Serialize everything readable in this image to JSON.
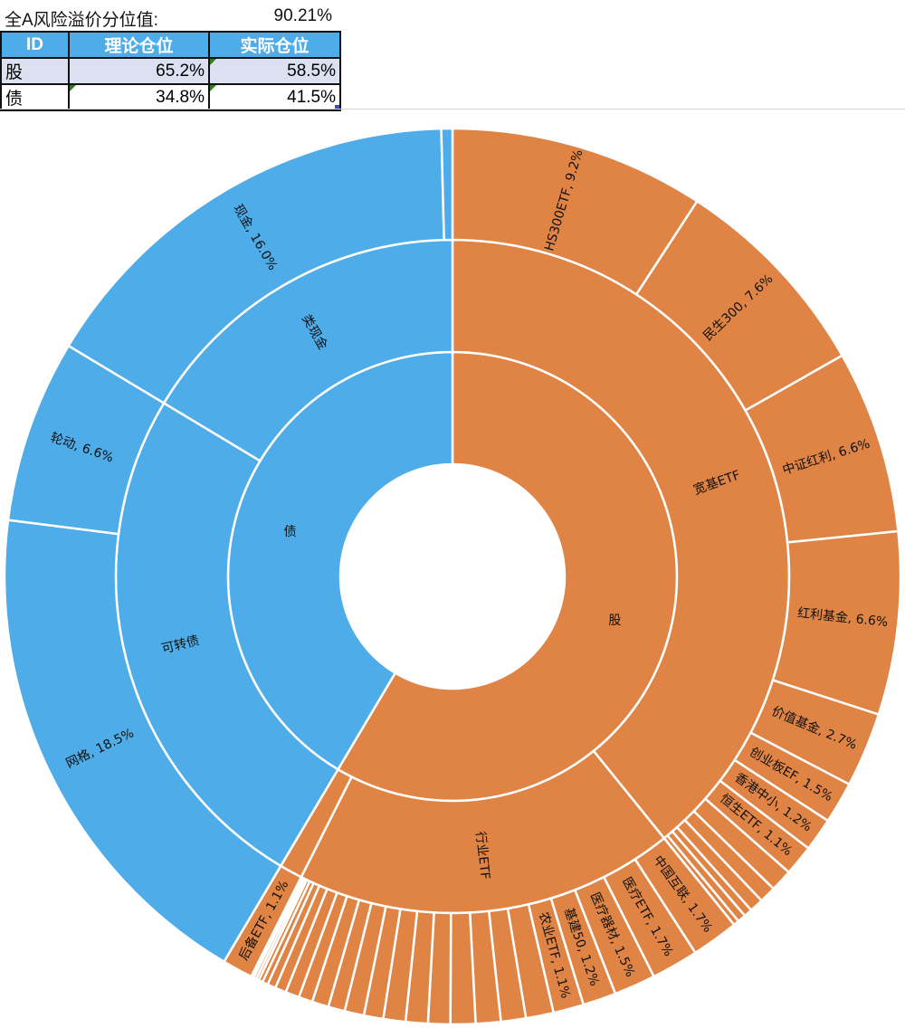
{
  "header": {
    "label": "全A风险溢价分位值:",
    "value": "90.21%"
  },
  "table": {
    "columns": [
      "ID",
      "理论仓位",
      "实际仓位"
    ],
    "rows": [
      {
        "id": "股",
        "theoretical": "65.2%",
        "actual": "58.5%"
      },
      {
        "id": "债",
        "theoretical": "34.8%",
        "actual": "41.5%"
      }
    ]
  },
  "colors": {
    "股": "#DF8444",
    "债": "#4EACE8"
  },
  "chart_data": {
    "type": "sunburst",
    "unit": "%",
    "children": [
      {
        "name": "股",
        "children": [
          {
            "name": "宽基ETF",
            "children": [
              {
                "label": "HS300ETF, 9.2%",
                "value": 9.2
              },
              {
                "label": "民生300, 7.6%",
                "value": 7.6
              },
              {
                "label": "中证红利, 6.6%",
                "value": 6.6
              },
              {
                "label": "红利基金, 6.6%",
                "value": 6.6
              },
              {
                "label": "价值基金, 2.7%",
                "value": 2.7
              },
              {
                "label": "创业板EF, 1.5%",
                "value": 1.5
              },
              {
                "label": "香港中小, 1.2%",
                "value": 1.2
              },
              {
                "label": "恒生ETF, 1.1%",
                "value": 1.1
              },
              {
                "value": 0.8
              },
              {
                "value": 0.6
              },
              {
                "value": 0.5
              },
              {
                "value": 0.3
              },
              {
                "value": 0.3
              },
              {
                "value": 0.2
              }
            ]
          },
          {
            "name": "行业ETF",
            "children": [
              {
                "label": "中国互联, 1.7%",
                "value": 1.7
              },
              {
                "label": "医疗ETF, 1.7%",
                "value": 1.7
              },
              {
                "label": "医疗器材, 1.5%",
                "value": 1.5
              },
              {
                "label": "基建50, 1.2%",
                "value": 1.2
              },
              {
                "label": "农业ETF, 1.1%",
                "value": 1.1
              },
              {
                "value": 1.0
              },
              {
                "value": 0.9
              },
              {
                "value": 0.9
              },
              {
                "value": 0.9
              },
              {
                "value": 0.8
              },
              {
                "value": 0.8
              },
              {
                "value": 0.8
              },
              {
                "value": 0.7
              },
              {
                "value": 0.7
              },
              {
                "value": 0.6
              },
              {
                "value": 0.6
              },
              {
                "value": 0.5
              },
              {
                "value": 0.5
              },
              {
                "value": 0.4
              },
              {
                "value": 0.3
              },
              {
                "value": 0.2
              },
              {
                "value": 0.15
              },
              {
                "value": 0.1
              },
              {
                "value": 0.1
              },
              {
                "value": 0.05
              },
              {
                "value": 0.05
              }
            ]
          },
          {
            "name": "",
            "children": [
              {
                "label": "后备ETF, 1.1%",
                "value": 1.1
              }
            ]
          }
        ]
      },
      {
        "name": "债",
        "children": [
          {
            "name": "可转债",
            "children": [
              {
                "label": "网格, 18.5%",
                "value": 18.5
              },
              {
                "label": "轮动, 6.6%",
                "value": 6.6
              }
            ]
          },
          {
            "name": "类现金",
            "children": [
              {
                "label": "现金, 16.0%",
                "value": 16.0
              },
              {
                "value": 0.4
              }
            ]
          }
        ]
      }
    ]
  }
}
